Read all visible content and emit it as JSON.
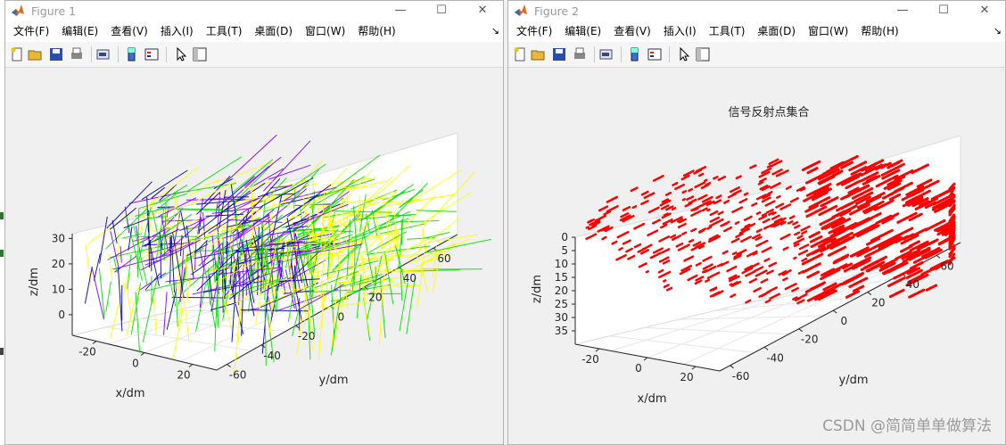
{
  "figure1": {
    "title": "Figure 1",
    "menu": [
      "文件(F)",
      "编辑(E)",
      "查看(V)",
      "插入(I)",
      "工具(T)",
      "桌面(D)",
      "窗口(W)",
      "帮助(H)"
    ],
    "menu_overflow": "↘",
    "axes": {
      "xlabel": "x/dm",
      "ylabel": "y/dm",
      "zlabel": "z/dm",
      "xticks": [
        "-20",
        "0",
        "20"
      ],
      "yticks": [
        "-60",
        "-40",
        "-20",
        "0",
        "20",
        "40",
        "60"
      ],
      "zticks": [
        "0",
        "10",
        "20",
        "30"
      ]
    }
  },
  "figure2": {
    "title": "Figure 2",
    "menu": [
      "文件(F)",
      "编辑(E)",
      "查看(V)",
      "插入(I)",
      "工具(T)",
      "桌面(D)",
      "窗口(W)",
      "帮助(H)"
    ],
    "menu_overflow": "↘",
    "axes": {
      "title": "信号反射点集合",
      "xlabel": "x/dm",
      "ylabel": "y/dm",
      "zlabel": "z/dm",
      "xticks": [
        "-20",
        "0",
        "20"
      ],
      "yticks": [
        "-60",
        "-40",
        "-20",
        "0",
        "20",
        "40",
        "60"
      ],
      "zticks": [
        "35",
        "30",
        "25",
        "20",
        "15",
        "10",
        "5",
        "0"
      ]
    }
  },
  "window_controls": {
    "minimize": "—",
    "maximize": "☐",
    "close": "✕"
  },
  "toolbar_icons": [
    "new-figure-icon",
    "open-file-icon",
    "save-icon",
    "print-icon",
    "print-preview-icon",
    "colorbar-icon",
    "legend-icon",
    "edit-plot-icon",
    "property-inspector-icon"
  ],
  "colors": {
    "lines": [
      "#ffff00",
      "#00e000",
      "#8000ff",
      "#0000a0",
      "#00c8c8"
    ],
    "points": "#ff0000"
  },
  "watermark": "CSDN @简简单单做算法"
}
